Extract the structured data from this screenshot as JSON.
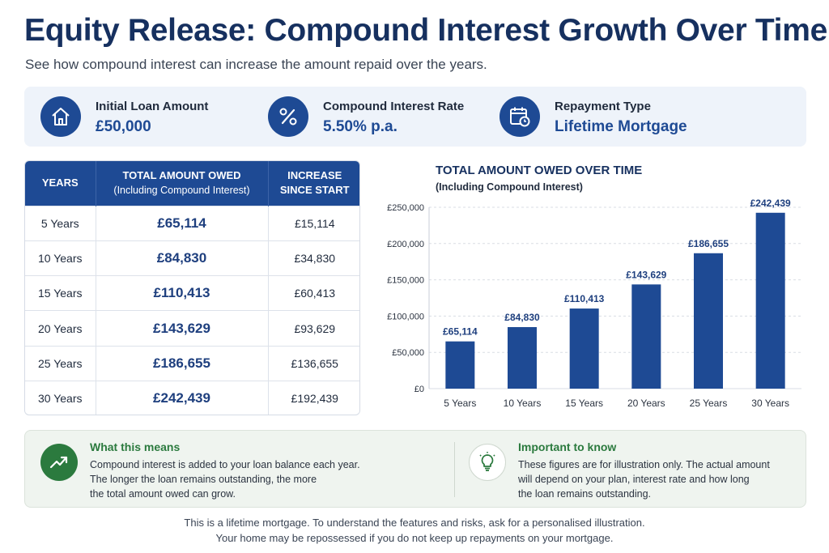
{
  "header": {
    "title": "Equity Release: Compound Interest Growth Over Time",
    "subtitle": "See how compound interest can increase the amount repaid over the years."
  },
  "summary": [
    {
      "icon": "house-icon",
      "label": "Initial Loan Amount",
      "value": "£50,000"
    },
    {
      "icon": "percent-icon",
      "label": "Compound Interest Rate",
      "value": "5.50% p.a."
    },
    {
      "icon": "calendar-clock-icon",
      "label": "Repayment Type",
      "value": "Lifetime Mortgage"
    }
  ],
  "table": {
    "headers": {
      "years": "YEARS",
      "owed": "TOTAL AMOUNT OWED",
      "owed_sub": "(Including Compound Interest)",
      "increase_line1": "INCREASE",
      "increase_line2": "SINCE START"
    },
    "rows": [
      {
        "years": "5 Years",
        "owed": "£65,114",
        "increase": "£15,114"
      },
      {
        "years": "10 Years",
        "owed": "£84,830",
        "increase": "£34,830"
      },
      {
        "years": "15 Years",
        "owed": "£110,413",
        "increase": "£60,413"
      },
      {
        "years": "20 Years",
        "owed": "£143,629",
        "increase": "£93,629"
      },
      {
        "years": "25 Years",
        "owed": "£186,655",
        "increase": "£136,655"
      },
      {
        "years": "30 Years",
        "owed": "£242,439",
        "increase": "£192,439"
      }
    ]
  },
  "chart_data": {
    "type": "bar",
    "title": "TOTAL AMOUNT OWED OVER TIME",
    "subtitle": "(Including Compound Interest)",
    "categories": [
      "5 Years",
      "10 Years",
      "15 Years",
      "20 Years",
      "25 Years",
      "30 Years"
    ],
    "values": [
      65114,
      84830,
      110413,
      143629,
      186655,
      242439
    ],
    "data_labels": [
      "£65,114",
      "£84,830",
      "£110,413",
      "£143,629",
      "£186,655",
      "£242,439"
    ],
    "yticks": [
      0,
      50000,
      100000,
      150000,
      200000,
      250000
    ],
    "ytick_labels": [
      "£0",
      "£50,000",
      "£100,000",
      "£150,000",
      "£200,000",
      "£250,000"
    ],
    "ylim": [
      0,
      250000
    ],
    "grid": true,
    "bar_color": "#1e4a94"
  },
  "notes": {
    "meaning": {
      "icon": "trending-up-icon",
      "heading": "What this means",
      "lines": [
        "Compound interest is added to your loan balance each year.",
        "The longer the loan remains outstanding, the more",
        "the total amount owed can grow."
      ]
    },
    "important": {
      "icon": "lightbulb-icon",
      "heading": "Important to know",
      "lines": [
        "These figures are for illustration only. The actual amount",
        "will depend on your plan, interest rate and how long",
        "the loan remains outstanding."
      ]
    }
  },
  "footer": {
    "line1": "This is a lifetime mortgage. To understand the features and risks, ask for a personalised illustration.",
    "line2": "Your home may be repossessed if you do not keep up repayments on your mortgage."
  },
  "colors": {
    "navy": "#16305f",
    "brand_blue": "#1e4a94",
    "green": "#2b7a3e"
  }
}
